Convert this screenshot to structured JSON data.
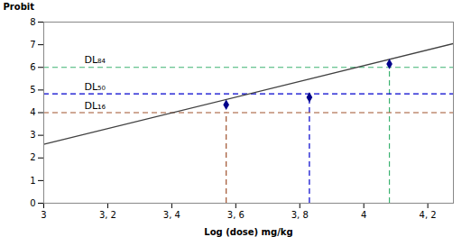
{
  "chart_data": {
    "type": "scatter",
    "xlabel": "Log (dose) mg/kg",
    "ylabel": "Probit",
    "xlim": [
      3.0,
      4.28
    ],
    "ylim": [
      0,
      8
    ],
    "xticks": [
      3.0,
      {
        "value": 3.2,
        "label": "3, 2"
      },
      {
        "value": 3.4,
        "label": "3, 4"
      },
      {
        "value": 3.6,
        "label": "3, 6"
      },
      {
        "value": 3.8,
        "label": "3, 8"
      },
      4.0,
      {
        "value": 4.2,
        "label": "4, 2"
      }
    ],
    "yticks": [
      0,
      1,
      2,
      3,
      4,
      5,
      6,
      7,
      8
    ],
    "series": [
      {
        "type": "line",
        "x": [
          3.0,
          4.28
        ],
        "values": [
          2.6,
          7.05
        ],
        "color": "#404040"
      },
      {
        "type": "scatter",
        "x": [
          3.57,
          3.83,
          4.08
        ],
        "values": [
          4.35,
          4.68,
          6.15
        ],
        "color": "#00008B",
        "marker": "diamond"
      }
    ],
    "reference_lines": [
      {
        "label": "DL₈₄",
        "x": 4.08,
        "y": 6.0,
        "color": "#3CB371",
        "line_style": "dashed"
      },
      {
        "label": "DL₅₀",
        "x": 3.83,
        "y": 4.83,
        "color": "#0000CD",
        "line_style": "dashed"
      },
      {
        "label": "DL₁₆",
        "x": 3.57,
        "y": 4.0,
        "color": "#A0522D",
        "line_style": "dashed"
      }
    ]
  }
}
